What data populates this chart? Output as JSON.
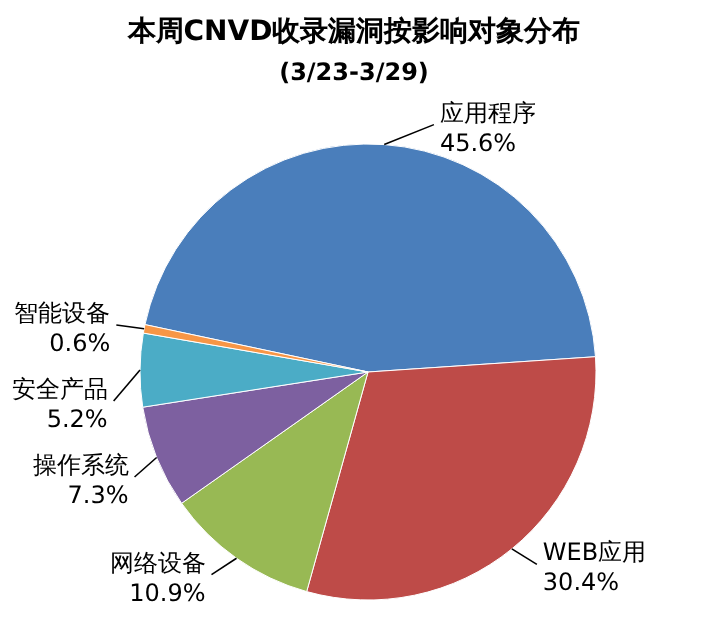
{
  "chart_data": {
    "type": "pie",
    "title": "本周CNVD收录漏洞按影响对象分布",
    "subtitle": "(3/23-3/29)",
    "categories": [
      "应用程序",
      "WEB应用",
      "网络设备",
      "操作系统",
      "安全产品",
      "智能设备"
    ],
    "values": [
      45.6,
      30.4,
      10.9,
      7.3,
      5.2,
      0.6
    ],
    "colors": [
      "#4a7ebb",
      "#be4b48",
      "#98b954",
      "#7d60a0",
      "#4bacc6",
      "#f79646"
    ],
    "value_labels": [
      "45.6%",
      "30.4%",
      "10.9%",
      "7.3%",
      "5.2%",
      "0.6%"
    ]
  }
}
